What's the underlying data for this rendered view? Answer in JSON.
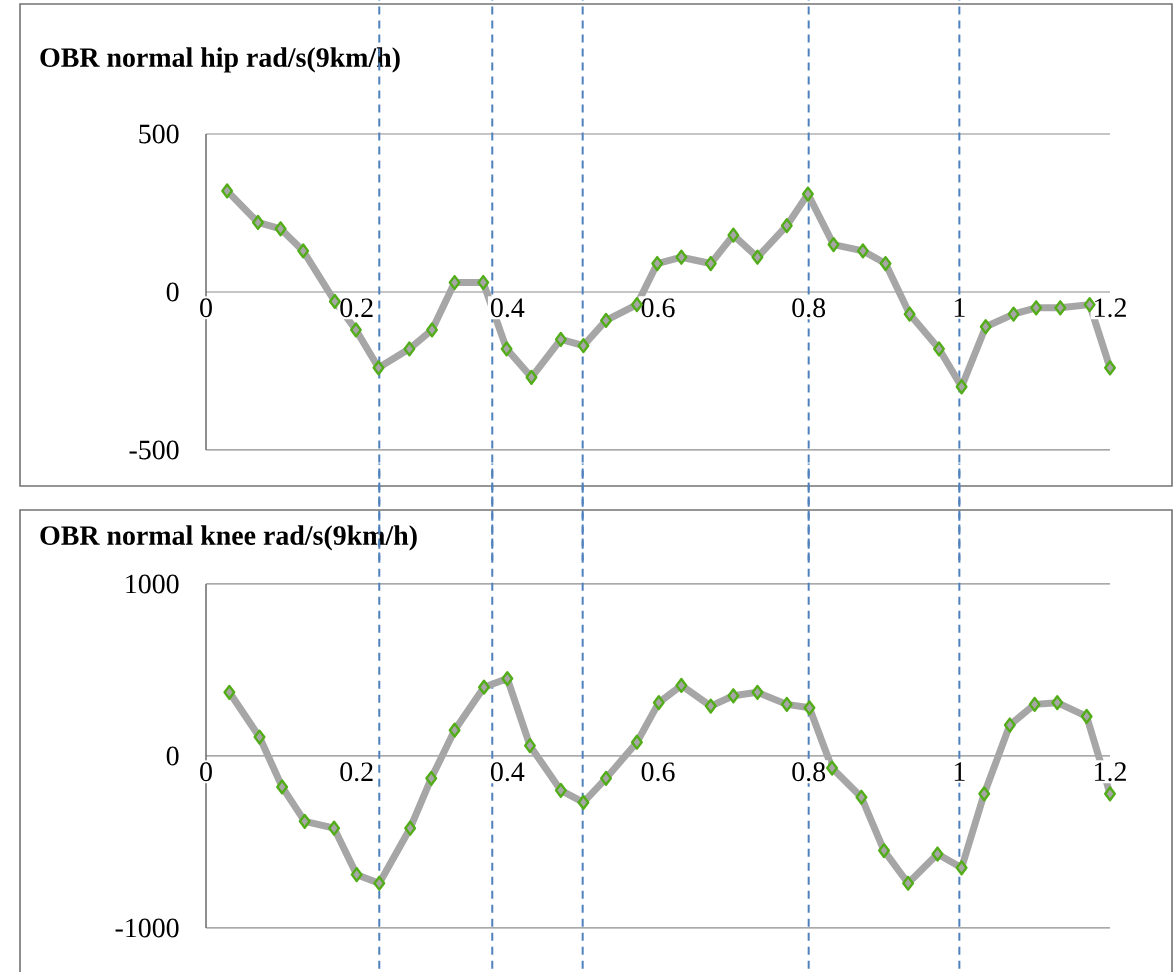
{
  "chart_data": [
    {
      "type": "line",
      "title": "OBR normal hip rad/s(9km/h)",
      "x": [
        0.028,
        0.069,
        0.099,
        0.129,
        0.171,
        0.199,
        0.229,
        0.27,
        0.3,
        0.33,
        0.368,
        0.399,
        0.432,
        0.471,
        0.501,
        0.531,
        0.572,
        0.599,
        0.631,
        0.67,
        0.7,
        0.732,
        0.771,
        0.799,
        0.833,
        0.872,
        0.902,
        0.934,
        0.973,
        1.003,
        1.035,
        1.072,
        1.102,
        1.134,
        1.173,
        1.2
      ],
      "series": [
        {
          "color": "#a6a6a6",
          "values": [
            320,
            220,
            200,
            130,
            -30,
            -120,
            -240,
            -180,
            -120,
            30,
            30,
            -180,
            -270,
            -150,
            -170,
            -90,
            -40,
            90,
            110,
            90,
            180,
            110,
            210,
            310,
            150,
            130,
            90,
            -70,
            -180,
            -300,
            -110,
            -70,
            -50,
            -50,
            -40,
            -240
          ]
        }
      ],
      "xlim": [
        0,
        1.2
      ],
      "xticks": [
        0,
        0.2,
        0.4,
        0.6,
        0.8,
        1,
        1.2
      ],
      "ylim": [
        -500,
        500
      ],
      "yticks": [
        -500,
        0,
        500
      ],
      "marker": "diamond",
      "line_style": "solid",
      "ref_lines": [
        {
          "axis": "x",
          "value": 0.23,
          "color": "#4f81bd",
          "line_style": "dashed"
        },
        {
          "axis": "x",
          "value": 0.38,
          "color": "#4f81bd",
          "line_style": "dashed"
        },
        {
          "axis": "x",
          "value": 0.5,
          "color": "#4f81bd",
          "line_style": "dashed"
        },
        {
          "axis": "x",
          "value": 0.8,
          "color": "#4f81bd",
          "line_style": "dashed"
        },
        {
          "axis": "x",
          "value": 1.0,
          "color": "#4f81bd",
          "line_style": "dashed"
        }
      ]
    },
    {
      "type": "line",
      "title": "OBR normal knee rad/s(9km/h)",
      "x": [
        0.031,
        0.071,
        0.101,
        0.131,
        0.17,
        0.2,
        0.23,
        0.271,
        0.299,
        0.33,
        0.369,
        0.4,
        0.43,
        0.471,
        0.501,
        0.531,
        0.572,
        0.601,
        0.631,
        0.67,
        0.7,
        0.732,
        0.771,
        0.801,
        0.831,
        0.87,
        0.9,
        0.932,
        0.971,
        1.003,
        1.033,
        1.067,
        1.1,
        1.13,
        1.169,
        1.2
      ],
      "series": [
        {
          "color": "#a6a6a6",
          "values": [
            370,
            110,
            -180,
            -380,
            -420,
            -690,
            -740,
            -420,
            -130,
            150,
            400,
            450,
            60,
            -200,
            -270,
            -130,
            80,
            310,
            410,
            290,
            350,
            370,
            300,
            280,
            -70,
            -240,
            -550,
            -740,
            -570,
            -650,
            -220,
            180,
            300,
            310,
            230,
            -220
          ]
        }
      ],
      "xlim": [
        0,
        1.2
      ],
      "xticks": [
        0,
        0.2,
        0.4,
        0.6,
        0.8,
        1,
        1.2
      ],
      "ylim": [
        -1000,
        1000
      ],
      "yticks": [
        -1000,
        0,
        1000
      ],
      "marker": "diamond",
      "line_style": "solid",
      "ref_lines": [
        {
          "axis": "x",
          "value": 0.23,
          "color": "#4f81bd",
          "line_style": "dashed"
        },
        {
          "axis": "x",
          "value": 0.38,
          "color": "#4f81bd",
          "line_style": "dashed"
        },
        {
          "axis": "x",
          "value": 0.5,
          "color": "#4f81bd",
          "line_style": "dashed"
        },
        {
          "axis": "x",
          "value": 0.8,
          "color": "#4f81bd",
          "line_style": "dashed"
        },
        {
          "axis": "x",
          "value": 1.0,
          "color": "#4f81bd",
          "line_style": "dashed"
        }
      ]
    }
  ]
}
